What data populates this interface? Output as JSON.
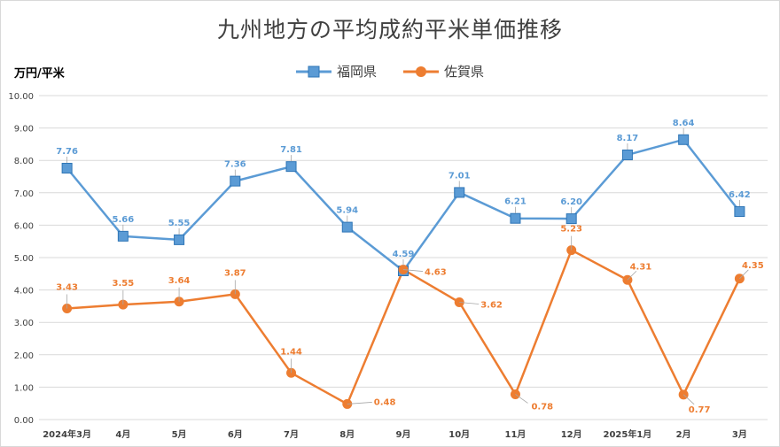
{
  "title": "九州地方の平均成約平米単価推移",
  "y_unit_label": "万円/平米",
  "colors": {
    "fukuoka": "#5b9bd5",
    "fukuoka_dark": "#2e75b6",
    "saga": "#ed7d31",
    "grid": "#d9d9d9",
    "tick_text": "#404040",
    "fukuoka_label": "#5b9bd5",
    "saga_label": "#ed7d31"
  },
  "chart_data": {
    "type": "line",
    "title": "九州地方の平均成約平米単価推移",
    "ylabel": "万円/平米",
    "xlabel": "",
    "ylim": [
      0,
      10
    ],
    "y_ticks": [
      "0.00",
      "1.00",
      "2.00",
      "3.00",
      "4.00",
      "5.00",
      "6.00",
      "7.00",
      "8.00",
      "9.00",
      "10.00"
    ],
    "grid": true,
    "legend_position": "top",
    "categories": [
      "2024年3月",
      "4月",
      "5月",
      "6月",
      "7月",
      "8月",
      "9月",
      "10月",
      "11月",
      "12月",
      "2025年1月",
      "2月",
      "3月"
    ],
    "series": [
      {
        "name": "福岡県",
        "marker": "square",
        "values": [
          7.76,
          5.66,
          5.55,
          7.36,
          7.81,
          5.94,
          4.59,
          7.01,
          6.21,
          6.2,
          8.17,
          8.64,
          6.42
        ],
        "labels": [
          "7.76",
          "5.66",
          "5.55",
          "7.36",
          "7.81",
          "5.94",
          "4.59",
          "7.01",
          "6.21",
          "6.20",
          "8.17",
          "8.64",
          "6.42"
        ]
      },
      {
        "name": "佐賀県",
        "marker": "circle",
        "values": [
          3.43,
          3.55,
          3.64,
          3.87,
          1.44,
          0.48,
          4.63,
          3.62,
          0.78,
          5.23,
          4.31,
          0.77,
          4.35
        ],
        "labels": [
          "3.43",
          "3.55",
          "3.64",
          "3.87",
          "1.44",
          "0.48",
          "4.63",
          "3.62",
          "0.78",
          "5.23",
          "4.31",
          "0.77",
          "4.35"
        ]
      }
    ]
  }
}
